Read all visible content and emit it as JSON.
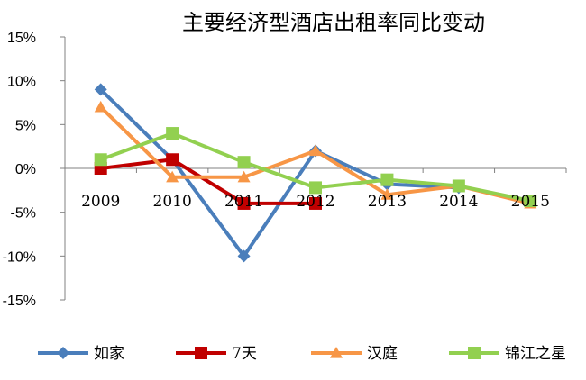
{
  "chart_data": {
    "type": "line",
    "title": "主要经济型酒店出租率同比变动",
    "xlabel": "",
    "ylabel": "",
    "categories": [
      "2009",
      "2010",
      "2011",
      "2012",
      "2013",
      "2014",
      "2015"
    ],
    "ylim": [
      -15,
      15
    ],
    "yticks": [
      15,
      10,
      5,
      0,
      -5,
      -10,
      -15
    ],
    "ytick_labels": [
      "15%",
      "10%",
      "5%",
      "0%",
      "-5%",
      "-10%",
      "-15%"
    ],
    "grid": false,
    "legend_position": "bottom",
    "series": [
      {
        "name": "如家",
        "color": "#4a7ebb",
        "marker": "diamond",
        "values": [
          9,
          1,
          -10,
          2,
          -1.8,
          -2.2,
          null
        ]
      },
      {
        "name": "7天",
        "color": "#c00000",
        "marker": "square",
        "values": [
          0,
          1,
          -4,
          -4,
          null,
          null,
          null
        ]
      },
      {
        "name": "汉庭",
        "color": "#f79646",
        "marker": "triangle",
        "values": [
          7,
          -1,
          -1,
          2,
          -3,
          -2,
          -4
        ]
      },
      {
        "name": "锦江之星",
        "color": "#92d050",
        "marker": "square",
        "values": [
          1,
          4,
          0.7,
          -2.2,
          -1.3,
          -2,
          -3.7
        ]
      }
    ]
  }
}
